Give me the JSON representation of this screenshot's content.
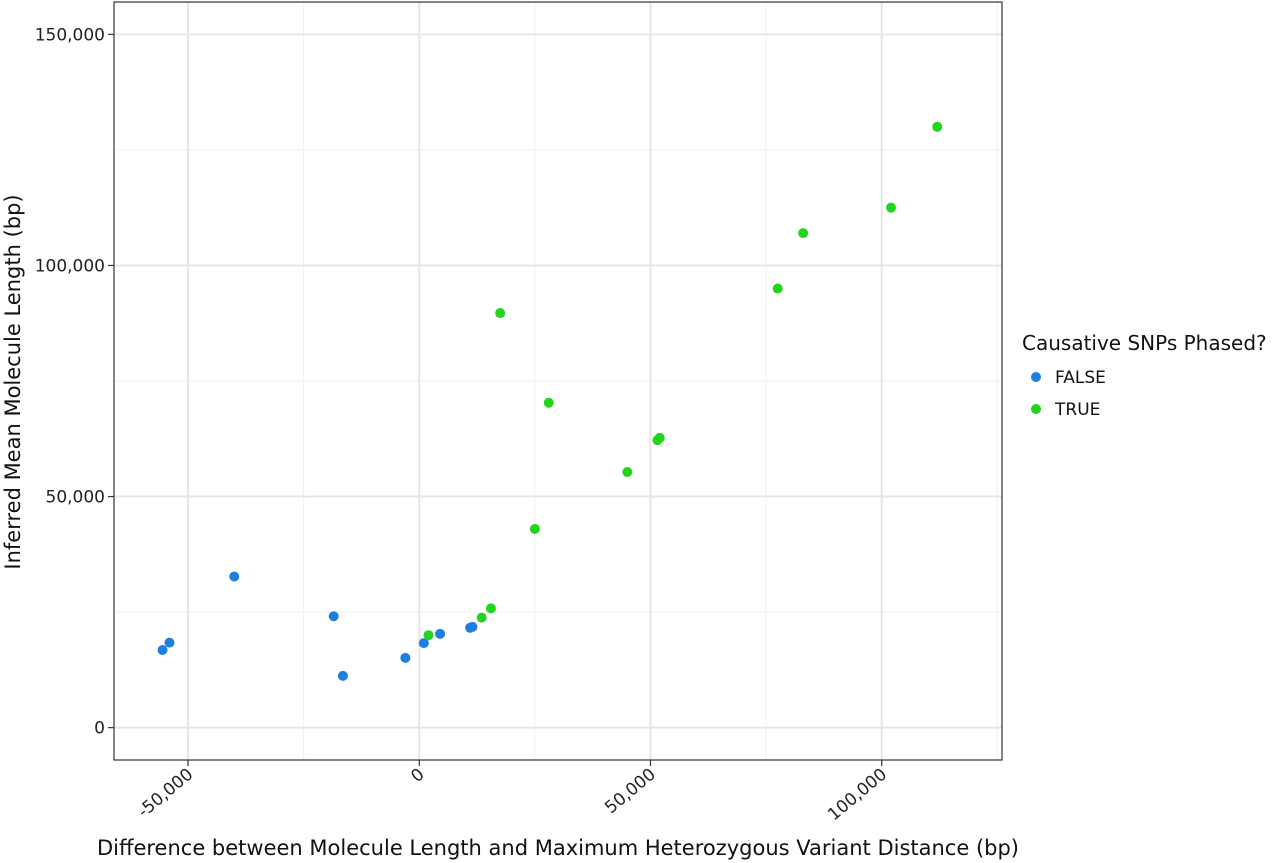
{
  "chart_data": {
    "type": "scatter",
    "xlabel": "Difference between Molecule Length and Maximum Heterozygous Variant Distance (bp)",
    "ylabel": "Inferred Mean Molecule Length (bp)",
    "xlim": [
      -66000,
      126000
    ],
    "ylim": [
      -7000,
      157000
    ],
    "x_ticks": [
      {
        "value": -50000,
        "label": "-50,000"
      },
      {
        "value": 0,
        "label": "0"
      },
      {
        "value": 50000,
        "label": "50,000"
      },
      {
        "value": 100000,
        "label": "100,000"
      }
    ],
    "y_ticks": [
      {
        "value": 0,
        "label": "0"
      },
      {
        "value": 50000,
        "label": "50,000"
      },
      {
        "value": 100000,
        "label": "100,000"
      },
      {
        "value": 150000,
        "label": "150,000"
      }
    ],
    "grid": true,
    "legend": {
      "title": "Causative SNPs Phased?",
      "placement": "right"
    },
    "series": [
      {
        "name": "FALSE",
        "color": "#1f7fe0",
        "points": [
          {
            "x": -55500,
            "y": 16800
          },
          {
            "x": -54000,
            "y": 18400
          },
          {
            "x": -40000,
            "y": 32700
          },
          {
            "x": -18500,
            "y": 24100
          },
          {
            "x": -16500,
            "y": 11200
          },
          {
            "x": -3000,
            "y": 15100
          },
          {
            "x": 1000,
            "y": 18300
          },
          {
            "x": 4500,
            "y": 20300
          },
          {
            "x": 11000,
            "y": 21600
          },
          {
            "x": 11500,
            "y": 21800
          }
        ]
      },
      {
        "name": "TRUE",
        "color": "#22d41c",
        "points": [
          {
            "x": 2000,
            "y": 20000
          },
          {
            "x": 13500,
            "y": 23800
          },
          {
            "x": 15500,
            "y": 25800
          },
          {
            "x": 17500,
            "y": 89700
          },
          {
            "x": 25000,
            "y": 43000
          },
          {
            "x": 28000,
            "y": 70300
          },
          {
            "x": 45000,
            "y": 55300
          },
          {
            "x": 51500,
            "y": 62200
          },
          {
            "x": 52000,
            "y": 62700
          },
          {
            "x": 77500,
            "y": 95000
          },
          {
            "x": 83000,
            "y": 107000
          },
          {
            "x": 102000,
            "y": 112500
          },
          {
            "x": 112000,
            "y": 130000
          }
        ]
      }
    ]
  }
}
